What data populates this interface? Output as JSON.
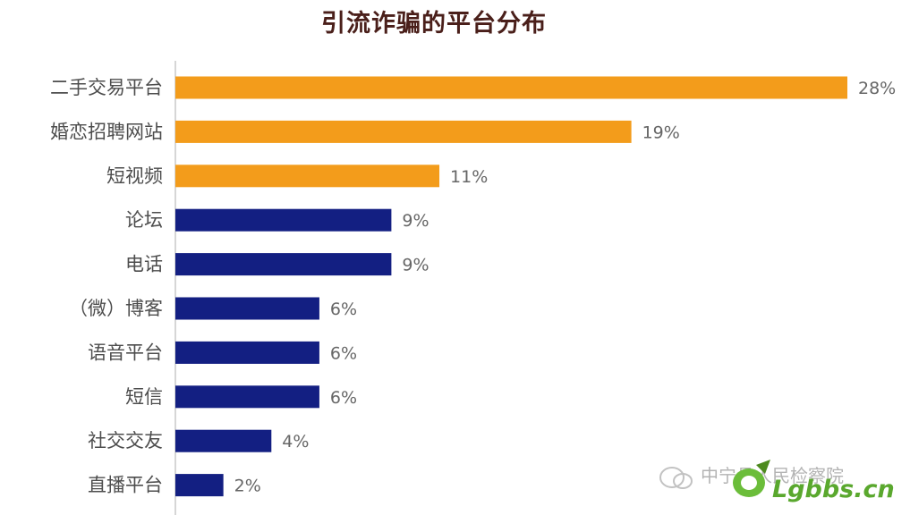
{
  "chart_data": {
    "type": "bar",
    "orientation": "horizontal",
    "title": "引流诈骗的平台分布",
    "categories": [
      "二手交易平台",
      "婚恋招聘网站",
      "短视频",
      "论坛",
      "电话",
      "（微）博客",
      "语音平台",
      "短信",
      "社交交友",
      "直播平台"
    ],
    "values": [
      28,
      19,
      11,
      9,
      9,
      6,
      6,
      6,
      4,
      2
    ],
    "value_labels": [
      "28%",
      "19%",
      "11%",
      "9%",
      "9%",
      "6%",
      "6%",
      "6%",
      "4%",
      "2%"
    ],
    "colors": [
      "#f39c1b",
      "#f39c1b",
      "#f39c1b",
      "#131f82",
      "#131f82",
      "#131f82",
      "#131f82",
      "#131f82",
      "#131f82",
      "#131f82"
    ],
    "xlim": [
      0,
      28
    ],
    "grid": false,
    "legend": "none"
  },
  "watermark": {
    "text_1": "中宁县人民检察院",
    "text_2": "Lgbbs.cn"
  }
}
